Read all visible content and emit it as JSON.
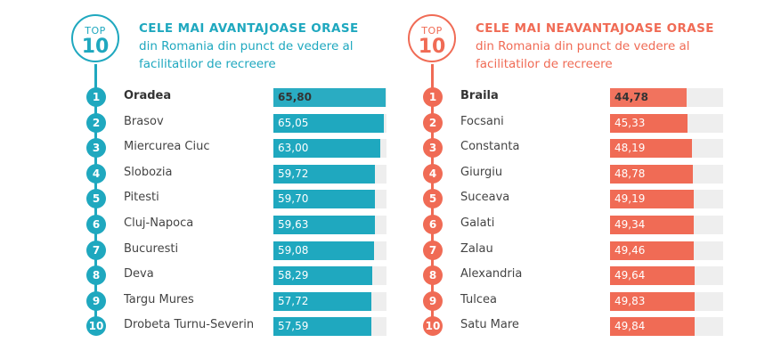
{
  "colors": {
    "left": "#1fa8bf",
    "right": "#f06b55",
    "track": "#eeeeee"
  },
  "scale_max": 66.5,
  "badge": {
    "top": "TOP",
    "ten": "10"
  },
  "left": {
    "headline": "CELE MAI AVANTAJOASE ORASE",
    "subtitle": "din Romania din punct de vedere al facilitatilor de recreere"
  },
  "right": {
    "headline": "CELE MAI NEAVANTAJOASE ORASE",
    "subtitle": "din Romania din punct de vedere al facilitatilor de recreere"
  },
  "chart_data": [
    {
      "type": "bar",
      "title": "CELE MAI AVANTAJOASE ORASE din Romania din punct de vedere al facilitatilor de recreere",
      "ranks": [
        1,
        2,
        3,
        4,
        5,
        6,
        7,
        8,
        9,
        10
      ],
      "categories": [
        "Oradea",
        "Brasov",
        "Miercurea Ciuc",
        "Slobozia",
        "Pitesti",
        "Cluj-Napoca",
        "Bucuresti",
        "Deva",
        "Targu Mures",
        "Drobeta Turnu-Severin"
      ],
      "values": [
        65.8,
        65.05,
        63.0,
        59.72,
        59.7,
        59.63,
        59.08,
        58.29,
        57.72,
        57.59
      ],
      "labels": [
        "65,80",
        "65,05",
        "63,00",
        "59,72",
        "59,70",
        "59,63",
        "59,08",
        "58,29",
        "57,72",
        "57,59"
      ]
    },
    {
      "type": "bar",
      "title": "CELE MAI NEAVANTAJOASE ORASE din Romania din punct de vedere al facilitatilor de recreere",
      "ranks": [
        1,
        2,
        3,
        4,
        5,
        6,
        7,
        8,
        9,
        10
      ],
      "categories": [
        "Braila",
        "Focsani",
        "Constanta",
        "Giurgiu",
        "Suceava",
        "Galati",
        "Zalau",
        "Alexandria",
        "Tulcea",
        "Satu Mare"
      ],
      "values": [
        44.78,
        45.33,
        48.19,
        48.78,
        49.19,
        49.34,
        49.46,
        49.64,
        49.83,
        49.84
      ],
      "labels": [
        "44,78",
        "45,33",
        "48,19",
        "48,78",
        "49,19",
        "49,34",
        "49,46",
        "49,64",
        "49,83",
        "49,84"
      ]
    }
  ]
}
